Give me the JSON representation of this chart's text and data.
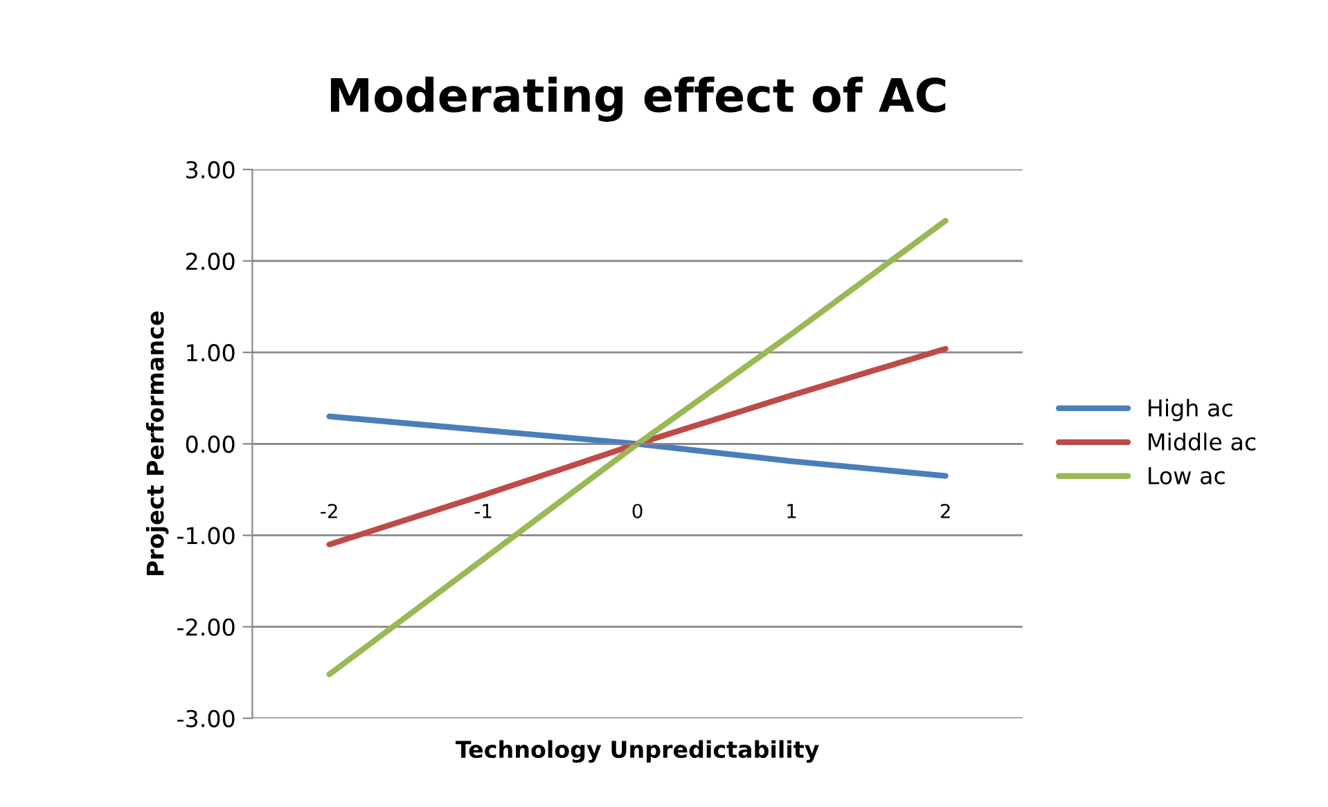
{
  "chart_data": {
    "type": "line",
    "title": "Moderating effect of AC",
    "xlabel": "Technology Unpredictability",
    "ylabel": "Project Performance",
    "categories": [
      "-2",
      "-1",
      "0",
      "1",
      "2"
    ],
    "series": [
      {
        "name": "High ac",
        "color": "#4a7ebb",
        "values": [
          0.3,
          0.15,
          0.0,
          -0.19,
          -0.35
        ]
      },
      {
        "name": "Middle ac",
        "color": "#be4b48",
        "values": [
          -1.1,
          -0.56,
          0.0,
          0.53,
          1.04
        ]
      },
      {
        "name": "Low ac",
        "color": "#98b954",
        "values": [
          -2.52,
          -1.26,
          0.0,
          1.2,
          2.44
        ]
      }
    ],
    "ylim": [
      -3,
      3
    ],
    "yticks": [
      {
        "value": -3,
        "label": "-3.00"
      },
      {
        "value": -2,
        "label": "-2.00"
      },
      {
        "value": -1,
        "label": "-1.00"
      },
      {
        "value": 0,
        "label": "0.00"
      },
      {
        "value": 1,
        "label": "1.00"
      },
      {
        "value": 2,
        "label": "2.00"
      },
      {
        "value": 3,
        "label": "3.00"
      }
    ],
    "grid": "y",
    "legend": "right",
    "marker": "none",
    "line_style": "solid"
  }
}
